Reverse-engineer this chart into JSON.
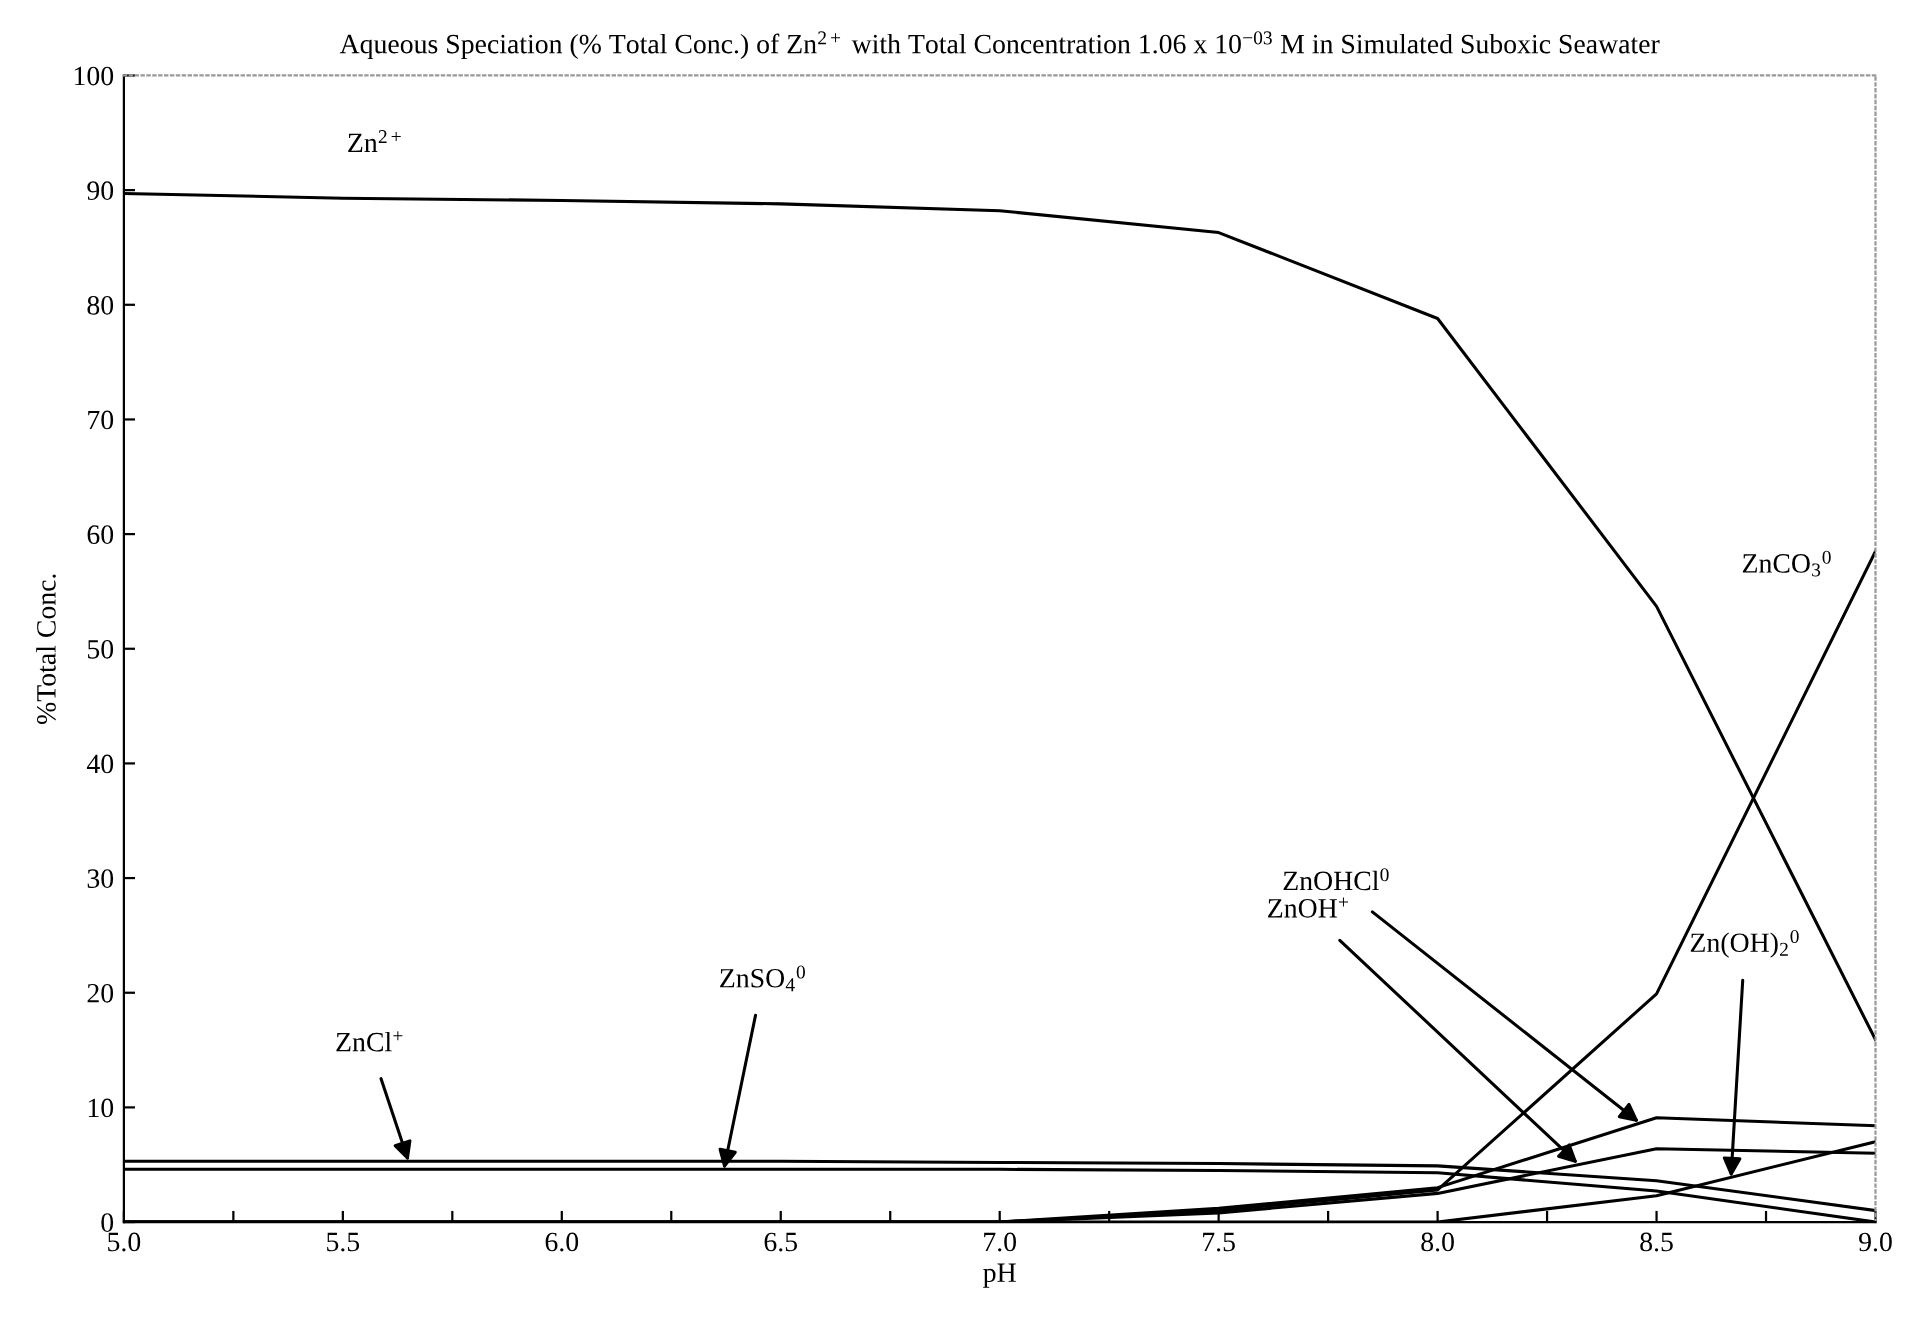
{
  "chart_data": {
    "type": "line",
    "title": "Aqueous Speciation (% Total Conc.) of Zn$^{2+}$ with Total Concentration 1.06 x 10$^{−03}$ M in Simulated Suboxic Seawater",
    "xlabel": "pH",
    "ylabel": "%Total Conc.",
    "x": [
      5.0,
      5.5,
      6.0,
      6.5,
      7.0,
      7.5,
      8.0,
      8.5,
      9.0
    ],
    "series": [
      {
        "color": "#000000",
        "values": [
          89.7,
          89.3,
          89.1,
          88.8,
          88.2,
          86.3,
          78.8,
          53.7,
          15.9
        ]
      },
      {
        "color": "#000000",
        "values": [
          5.3,
          5.3,
          5.3,
          5.3,
          5.2,
          5.1,
          4.9,
          3.6,
          1.0
        ]
      },
      {
        "color": "#000000",
        "values": [
          4.6,
          4.6,
          4.6,
          4.6,
          4.6,
          4.5,
          4.3,
          2.7,
          0.0
        ]
      },
      {
        "color": "#000000",
        "values": [
          0.0,
          0.0,
          0.0,
          0.0,
          0.0,
          1.0,
          2.8,
          19.9,
          58.5
        ]
      },
      {
        "color": "#000000",
        "values": [
          0.0,
          0.0,
          0.0,
          0.0,
          0.0,
          1.2,
          3.0,
          9.1,
          8.4
        ]
      },
      {
        "color": "#000000",
        "values": [
          0.0,
          0.0,
          0.0,
          0.0,
          0.0,
          0.8,
          2.5,
          6.4,
          6.0
        ]
      },
      {
        "color": "#000000",
        "values": [
          0.0,
          0.0,
          0.0,
          0.0,
          0.0,
          0.0,
          0.0,
          2.3,
          7.0
        ]
      }
    ],
    "annotations": [
      {
        "text": "Zn$^{2+}$",
        "x": 5.5,
        "y": 89.3
      },
      {
        "text": "ZnCl$^{+}$",
        "x": 5.65,
        "y": 5.3
      },
      {
        "text": "ZnSO$_{4}$$^{0}$",
        "x": 6.37,
        "y": 4.6
      },
      {
        "text": "ZnCO$_{3}$$^{0}$",
        "x": 8.95,
        "y": 54.6
      },
      {
        "text": "ZnOHCl$^{0}$",
        "x": 8.46,
        "y": 8.7
      },
      {
        "text": "ZnOH$^{+}$",
        "x": 8.32,
        "y": 5.1
      },
      {
        "text": "Zn(OH)$_{2}$$^{0}$",
        "x": 8.67,
        "y": 3.9
      }
    ],
    "xlim": [
      5.0,
      9.0
    ],
    "xticks": [
      {
        "value": 5,
        "label": "5.0"
      },
      {
        "value": 5.25,
        "label": null
      },
      5.5,
      {
        "value": 5.75,
        "label": null
      },
      {
        "value": 6,
        "label": "6.0"
      },
      {
        "value": 6.25,
        "label": null
      },
      6.5,
      {
        "value": 6.75,
        "label": null
      },
      {
        "value": 7,
        "label": "7.0"
      },
      {
        "value": 7.25,
        "label": null
      },
      7.5,
      {
        "value": 7.75,
        "label": null
      },
      {
        "value": 8,
        "label": "8.0"
      },
      {
        "value": 8.25,
        "label": null
      },
      8.5,
      {
        "value": 8.75,
        "label": null
      },
      {
        "value": 9,
        "label": "9.0"
      }
    ],
    "ylim": [
      0,
      100
    ],
    "yticks": [
      0,
      10,
      20,
      30,
      40,
      50,
      60,
      70,
      80,
      90,
      100
    ],
    "grid": false,
    "legend": false,
    "marker": "none",
    "line_style": "solid"
  }
}
